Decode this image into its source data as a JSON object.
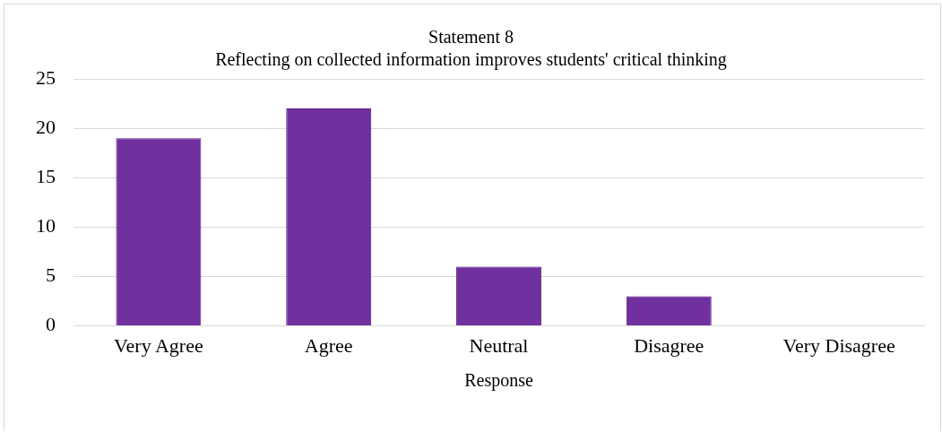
{
  "chart_data": {
    "type": "bar",
    "title": "Statement 8",
    "subtitle": "Reflecting on collected information improves students' critical thinking",
    "xlabel": "Response",
    "categories": [
      "Very Agree",
      "Agree",
      "Neutral",
      "Disagree",
      "Very Disagree"
    ],
    "values": [
      19,
      22,
      6,
      3,
      0
    ],
    "color": "#7030a0",
    "ylim": [
      0,
      25
    ],
    "yticks": [
      0,
      5,
      10,
      15,
      20,
      25
    ],
    "grid": "y",
    "legend": false
  }
}
